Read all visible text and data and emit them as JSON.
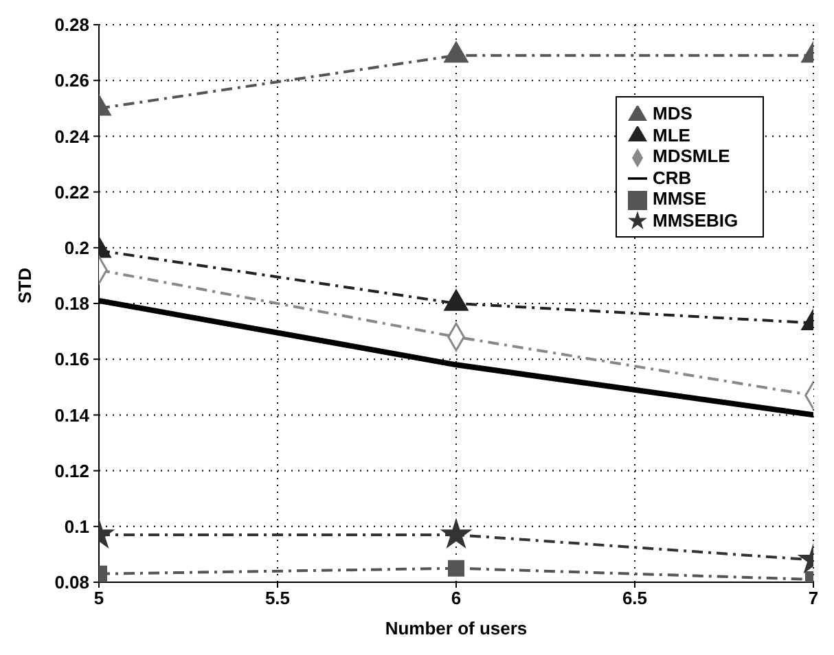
{
  "chart_data": {
    "type": "line",
    "xlabel": "Number of users",
    "ylabel": "STD",
    "x": [
      5,
      6,
      7
    ],
    "xlim": [
      5,
      7
    ],
    "xticks": [
      5,
      5.5,
      6,
      6.5,
      7
    ],
    "ylim": [
      0.08,
      0.28
    ],
    "yticks": [
      0.08,
      0.1,
      0.12,
      0.14,
      0.16,
      0.18,
      0.2,
      0.22,
      0.24,
      0.26,
      0.28
    ],
    "grid": true,
    "legend": "top right",
    "series": [
      {
        "name": "MDS",
        "color": "#555555",
        "values": [
          0.25,
          0.269,
          0.269
        ],
        "marker": "triangle",
        "line_style": "dashed"
      },
      {
        "name": "MLE",
        "color": "#222222",
        "values": [
          0.199,
          0.18,
          0.173
        ],
        "marker": "triangle",
        "line_style": "dashed"
      },
      {
        "name": "MDSMLE",
        "color": "#888888",
        "values": [
          0.192,
          0.168,
          0.147
        ],
        "marker": "diamond",
        "line_style": "dashed"
      },
      {
        "name": "CRB",
        "color": "#000000",
        "values": [
          0.181,
          0.158,
          0.14
        ],
        "marker": "none",
        "line_style": "solid"
      },
      {
        "name": "MMSE",
        "color": "#555555",
        "values": [
          0.083,
          0.085,
          0.081
        ],
        "marker": "square",
        "line_style": "dashed"
      },
      {
        "name": "MMSEBIG",
        "color": "#333333",
        "values": [
          0.097,
          0.097,
          0.088
        ],
        "marker": "star",
        "line_style": "dashed"
      }
    ]
  }
}
